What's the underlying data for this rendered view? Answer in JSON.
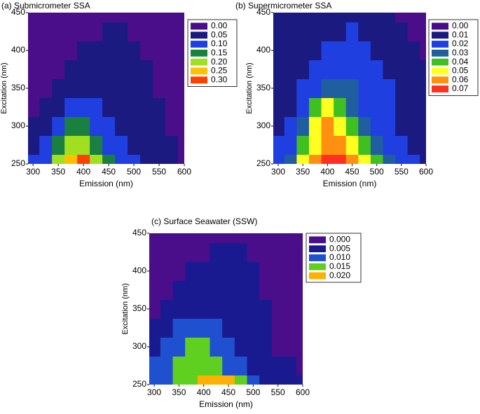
{
  "chart_data": [
    {
      "type": "contour",
      "title": "(a) Submicrometer SSA",
      "x_label": "Emission (nm)",
      "y_label": "Excitation (nm)",
      "xlim": [
        290,
        600
      ],
      "ylim": [
        250,
        450
      ],
      "xticks": [
        300,
        350,
        400,
        450,
        500,
        550,
        600
      ],
      "yticks": [
        250,
        300,
        350,
        400,
        450
      ],
      "x": [
        300,
        325,
        350,
        375,
        400,
        425,
        450,
        475,
        500,
        525,
        550,
        575,
        600
      ],
      "y": [
        250,
        275,
        300,
        325,
        350,
        375,
        400,
        425,
        450
      ],
      "z": [
        [
          0.1,
          0.12,
          0.22,
          0.28,
          0.3,
          0.22,
          0.15,
          0.12,
          0.1,
          0.08,
          0.06,
          0.05,
          0.04
        ],
        [
          0.08,
          0.1,
          0.15,
          0.2,
          0.22,
          0.18,
          0.12,
          0.1,
          0.08,
          0.07,
          0.05,
          0.05,
          0.04
        ],
        [
          0.05,
          0.08,
          0.1,
          0.15,
          0.18,
          0.14,
          0.1,
          0.08,
          0.07,
          0.06,
          0.05,
          0.04,
          0.04
        ],
        [
          0.04,
          0.05,
          0.08,
          0.1,
          0.12,
          0.11,
          0.09,
          0.07,
          0.06,
          0.05,
          0.05,
          0.04,
          0.03
        ],
        [
          0.04,
          0.04,
          0.05,
          0.07,
          0.09,
          0.09,
          0.08,
          0.07,
          0.06,
          0.05,
          0.04,
          0.04,
          0.03
        ],
        [
          0.03,
          0.04,
          0.04,
          0.05,
          0.06,
          0.07,
          0.07,
          0.06,
          0.05,
          0.05,
          0.04,
          0.03,
          0.03
        ],
        [
          0.03,
          0.03,
          0.04,
          0.04,
          0.05,
          0.05,
          0.06,
          0.06,
          0.05,
          0.04,
          0.04,
          0.03,
          0.02
        ],
        [
          0.03,
          0.03,
          0.03,
          0.04,
          0.04,
          0.04,
          0.05,
          0.05,
          0.04,
          0.04,
          0.03,
          0.02,
          0.02
        ],
        [
          0.02,
          0.03,
          0.03,
          0.03,
          0.04,
          0.04,
          0.04,
          0.04,
          0.04,
          0.03,
          0.03,
          0.02,
          0.02
        ]
      ],
      "levels": [
        {
          "value": 0,
          "label": "0.00"
        },
        {
          "value": 0.05,
          "label": "0.05"
        },
        {
          "value": 0.1,
          "label": "0.10"
        },
        {
          "value": 0.15,
          "label": "0.15"
        },
        {
          "value": 0.2,
          "label": "0.20"
        },
        {
          "value": 0.25,
          "label": "0.25"
        },
        {
          "value": 0.3,
          "label": "0.30"
        }
      ],
      "colors": [
        "#4b0e8a",
        "#1a1a80",
        "#1f3fe0",
        "#1a8040",
        "#a0e020",
        "#ffc000",
        "#ff4000"
      ]
    },
    {
      "type": "contour",
      "title": "(b) Supermicrometer SSA",
      "x_label": "Emission (nm)",
      "y_label": "Excitation (nm)",
      "xlim": [
        290,
        600
      ],
      "ylim": [
        250,
        450
      ],
      "xticks": [
        300,
        350,
        400,
        450,
        500,
        550,
        600
      ],
      "yticks": [
        250,
        300,
        350,
        400,
        450
      ],
      "x": [
        300,
        325,
        350,
        375,
        400,
        425,
        450,
        475,
        500,
        525,
        550,
        575,
        600
      ],
      "y": [
        250,
        275,
        300,
        325,
        350,
        375,
        400,
        425,
        450
      ],
      "z": [
        [
          0.02,
          0.03,
          0.05,
          0.06,
          0.07,
          0.07,
          0.06,
          0.05,
          0.04,
          0.03,
          0.02,
          0.02,
          0.01
        ],
        [
          0.02,
          0.02,
          0.04,
          0.05,
          0.06,
          0.06,
          0.05,
          0.04,
          0.03,
          0.02,
          0.02,
          0.01,
          0.01
        ],
        [
          0.01,
          0.02,
          0.03,
          0.05,
          0.06,
          0.05,
          0.04,
          0.03,
          0.02,
          0.02,
          0.01,
          0.01,
          0.01
        ],
        [
          0.01,
          0.01,
          0.02,
          0.04,
          0.05,
          0.04,
          0.03,
          0.02,
          0.02,
          0.02,
          0.01,
          0.01,
          0.01
        ],
        [
          0.01,
          0.01,
          0.02,
          0.02,
          0.03,
          0.03,
          0.03,
          0.02,
          0.02,
          0.02,
          0.01,
          0.01,
          0.01
        ],
        [
          0.01,
          0.01,
          0.01,
          0.02,
          0.02,
          0.02,
          0.02,
          0.02,
          0.02,
          0.01,
          0.01,
          0.01,
          0.01
        ],
        [
          0.01,
          0.01,
          0.01,
          0.01,
          0.02,
          0.02,
          0.02,
          0.02,
          0.01,
          0.01,
          0.01,
          0.01,
          0.0
        ],
        [
          0.01,
          0.01,
          0.01,
          0.01,
          0.01,
          0.01,
          0.02,
          0.01,
          0.01,
          0.01,
          0.01,
          0.0,
          0.0
        ],
        [
          0.01,
          0.01,
          0.01,
          0.01,
          0.01,
          0.01,
          0.01,
          0.01,
          0.01,
          0.01,
          0.0,
          0.0,
          0.0
        ]
      ],
      "levels": [
        {
          "value": 0,
          "label": "0.00"
        },
        {
          "value": 0.01,
          "label": "0.01"
        },
        {
          "value": 0.02,
          "label": "0.02"
        },
        {
          "value": 0.03,
          "label": "0.03"
        },
        {
          "value": 0.04,
          "label": "0.04"
        },
        {
          "value": 0.05,
          "label": "0.05"
        },
        {
          "value": 0.06,
          "label": "0.06"
        },
        {
          "value": 0.07,
          "label": "0.07"
        }
      ],
      "colors": [
        "#4b0e8a",
        "#1a1a80",
        "#1f3fe0",
        "#1f5fa0",
        "#40c020",
        "#ffff20",
        "#ff9010",
        "#ff3020"
      ]
    },
    {
      "type": "contour",
      "title": "(c) Surface Seawater (SSW)",
      "x_label": "Emission (nm)",
      "y_label": "Excitation (nm)",
      "xlim": [
        290,
        600
      ],
      "ylim": [
        250,
        450
      ],
      "xticks": [
        300,
        350,
        400,
        450,
        500,
        550,
        600
      ],
      "yticks": [
        250,
        300,
        350,
        400,
        450
      ],
      "x": [
        300,
        325,
        350,
        375,
        400,
        425,
        450,
        475,
        500,
        525,
        550,
        575,
        600
      ],
      "y": [
        250,
        275,
        300,
        325,
        350,
        375,
        400,
        425,
        450
      ],
      "z": [
        [
          0.012,
          0.014,
          0.016,
          0.018,
          0.02,
          0.021,
          0.02,
          0.016,
          0.012,
          0.008,
          0.006,
          0.006,
          0.005
        ],
        [
          0.012,
          0.014,
          0.015,
          0.016,
          0.017,
          0.016,
          0.014,
          0.011,
          0.008,
          0.006,
          0.005,
          0.005,
          0.004
        ],
        [
          0.008,
          0.012,
          0.014,
          0.015,
          0.016,
          0.013,
          0.011,
          0.008,
          0.006,
          0.005,
          0.004,
          0.004,
          0.004
        ],
        [
          0.005,
          0.008,
          0.01,
          0.012,
          0.012,
          0.01,
          0.009,
          0.007,
          0.006,
          0.005,
          0.004,
          0.004,
          0.003
        ],
        [
          0.004,
          0.005,
          0.007,
          0.008,
          0.008,
          0.008,
          0.007,
          0.006,
          0.005,
          0.005,
          0.004,
          0.003,
          0.003
        ],
        [
          0.004,
          0.004,
          0.005,
          0.006,
          0.006,
          0.007,
          0.006,
          0.006,
          0.005,
          0.004,
          0.004,
          0.003,
          0.003
        ],
        [
          0.003,
          0.004,
          0.004,
          0.005,
          0.005,
          0.005,
          0.006,
          0.005,
          0.005,
          0.004,
          0.003,
          0.003,
          0.002
        ],
        [
          0.003,
          0.003,
          0.004,
          0.004,
          0.004,
          0.005,
          0.005,
          0.005,
          0.004,
          0.004,
          0.003,
          0.002,
          0.002
        ],
        [
          0.002,
          0.003,
          0.003,
          0.004,
          0.004,
          0.004,
          0.004,
          0.004,
          0.004,
          0.003,
          0.003,
          0.002,
          0.002
        ]
      ],
      "levels": [
        {
          "value": 0,
          "label": "0.000"
        },
        {
          "value": 0.005,
          "label": "0.005"
        },
        {
          "value": 0.01,
          "label": "0.010"
        },
        {
          "value": 0.015,
          "label": "0.015"
        },
        {
          "value": 0.02,
          "label": "0.020"
        }
      ],
      "colors": [
        "#4b0e8a",
        "#1a1a90",
        "#1f50d0",
        "#60d020",
        "#ffb000"
      ]
    }
  ]
}
